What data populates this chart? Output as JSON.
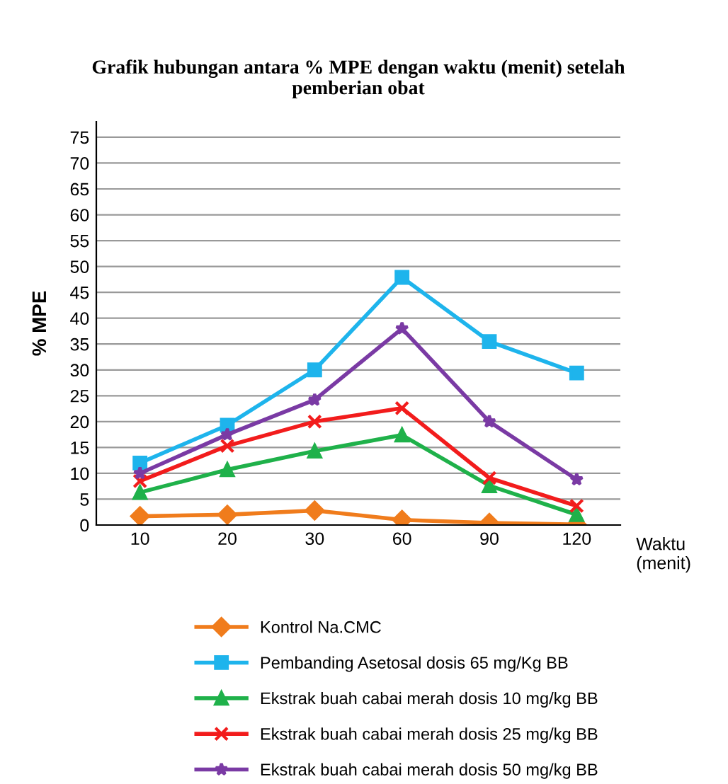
{
  "chart_data": {
    "type": "line",
    "title": "Grafik hubungan antara % MPE dengan waktu (menit) setelah\npemberian obat",
    "xlabel": "Waktu\n(menit)",
    "ylabel": "% MPE",
    "categories": [
      "10",
      "20",
      "30",
      "60",
      "90",
      "120"
    ],
    "series": [
      {
        "name": "Kontrol Na.CMC",
        "color": "#f07c1c",
        "marker": "diamond",
        "values": [
          1.7,
          2.0,
          2.8,
          1.0,
          0.4,
          0.1
        ]
      },
      {
        "name": "Pembanding Asetosal dosis 65 mg/Kg BB",
        "color": "#1eb4ec",
        "marker": "square",
        "values": [
          12,
          19.3,
          30,
          47.9,
          35.5,
          29.4
        ]
      },
      {
        "name": "Ekstrak buah cabai merah dosis 10 mg/kg BB",
        "color": "#1fb14a",
        "marker": "triangle",
        "values": [
          6.3,
          10.7,
          14.3,
          17.4,
          7.6,
          2.0
        ]
      },
      {
        "name": "Ekstrak buah cabai merah dosis 25 mg/kg BB",
        "color": "#f21c1c",
        "marker": "cross",
        "values": [
          8.5,
          15.3,
          20,
          22.6,
          9.1,
          3.7
        ]
      },
      {
        "name": "Ekstrak buah cabai merah dosis 50 mg/kg BB",
        "color": "#7a3aa4",
        "marker": "star",
        "values": [
          10,
          17.5,
          24.2,
          38,
          20,
          8.8
        ]
      }
    ],
    "ylim": [
      0,
      78
    ],
    "yticks": [
      0,
      5,
      10,
      15,
      20,
      25,
      30,
      35,
      40,
      45,
      50,
      55,
      60,
      65,
      70,
      75
    ],
    "grid": "y",
    "legend": "bottom"
  }
}
